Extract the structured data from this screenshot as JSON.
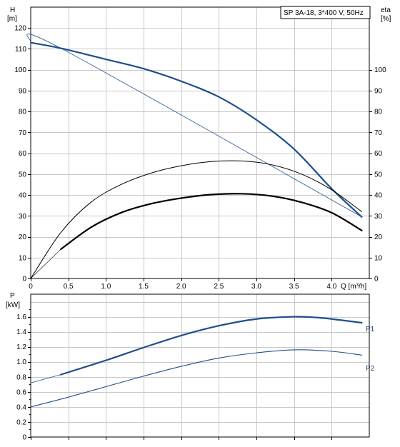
{
  "chart_data": [
    {
      "type": "line",
      "title": "SP 3A-18, 3*400 V, 50Hz",
      "xlabel": "Q [m³/h]",
      "ylabel_left": [
        "H",
        "[m]"
      ],
      "ylabel_right": [
        "eta",
        "[%]"
      ],
      "xlim": [
        0,
        4.5
      ],
      "ylim_left": [
        0,
        130
      ],
      "ylim_right": [
        0,
        130
      ],
      "x_ticks": [
        0,
        0.5,
        1.0,
        1.5,
        2.0,
        2.5,
        3.0,
        3.5,
        4.0
      ],
      "x_tick_labels": [
        "0",
        "0.5",
        "1.0",
        "1.5",
        "2.0",
        "2.5",
        "3.0",
        "3.5",
        "4.0"
      ],
      "y_ticks_left": [
        0,
        10,
        20,
        30,
        40,
        50,
        60,
        70,
        80,
        90,
        100,
        110,
        120
      ],
      "y_ticks_right": [
        0,
        10,
        20,
        30,
        40,
        50,
        60,
        70,
        80,
        90,
        100
      ],
      "grid": true,
      "series": [
        {
          "color": "#1f4e8c",
          "width": 2.2,
          "x": [
            0,
            0.4,
            1.0,
            1.5,
            2.0,
            2.5,
            3.0,
            3.5,
            4.0,
            4.4
          ],
          "y": [
            113,
            110.3,
            105,
            100.5,
            94.5,
            87,
            76,
            62,
            43,
            29.5
          ]
        },
        {
          "color": "#1f4e8c",
          "width": 0.8,
          "x": [
            0,
            0.4,
            4.4
          ],
          "y": [
            113,
            110.3,
            29.5
          ]
        },
        {
          "color": "#000000",
          "width": 1.0,
          "x": [
            0,
            0.4,
            0.8,
            1.2,
            1.6,
            2.0,
            2.4,
            2.8,
            3.2,
            3.6,
            4.0,
            4.4
          ],
          "y": [
            0,
            22,
            36.5,
            45,
            50.5,
            54,
            56,
            56.3,
            54.5,
            50,
            42.5,
            32
          ]
        },
        {
          "color": "#000000",
          "width": 2.2,
          "x": [
            0.4,
            0.8,
            1.2,
            1.6,
            2.0,
            2.4,
            2.8,
            3.2,
            3.6,
            4.0,
            4.4
          ],
          "y": [
            14,
            24.5,
            31.5,
            35.8,
            38.5,
            40.2,
            40.6,
            39.5,
            36.5,
            31.5,
            23
          ]
        },
        {
          "color": "#000000",
          "width": 0.6,
          "x": [
            0,
            0.4
          ],
          "y": [
            0,
            14
          ]
        }
      ]
    },
    {
      "type": "line",
      "xlabel": "",
      "ylabel": [
        "P",
        "[kW]"
      ],
      "xlim": [
        0,
        4.5
      ],
      "ylim": [
        0,
        1.9
      ],
      "y_ticks": [
        0,
        0.2,
        0.4,
        0.6,
        0.8,
        1.0,
        1.2,
        1.4,
        1.6
      ],
      "y_tick_labels": [
        "0",
        "0.2",
        "0.4",
        "0.6",
        "0.8",
        "1.0",
        "1.2",
        "1.4",
        "1.6"
      ],
      "grid": true,
      "series": [
        {
          "name": "P1",
          "color": "#1f4e8c",
          "width": 2.2,
          "x": [
            0.4,
            1.0,
            1.5,
            2.0,
            2.5,
            3.0,
            3.5,
            3.8,
            4.0,
            4.4
          ],
          "y": [
            0.83,
            1.02,
            1.19,
            1.35,
            1.48,
            1.57,
            1.6,
            1.59,
            1.57,
            1.52
          ]
        },
        {
          "name": "",
          "color": "#1f4e8c",
          "width": 0.8,
          "x": [
            0,
            0.4
          ],
          "y": [
            0.72,
            0.83
          ]
        },
        {
          "name": "P2",
          "color": "#1f4e8c",
          "width": 1.1,
          "x": [
            0,
            0.5,
            1.0,
            1.5,
            2.0,
            2.5,
            3.0,
            3.5,
            4.0,
            4.4
          ],
          "y": [
            0.4,
            0.53,
            0.67,
            0.81,
            0.94,
            1.05,
            1.12,
            1.16,
            1.14,
            1.09
          ]
        }
      ]
    }
  ]
}
